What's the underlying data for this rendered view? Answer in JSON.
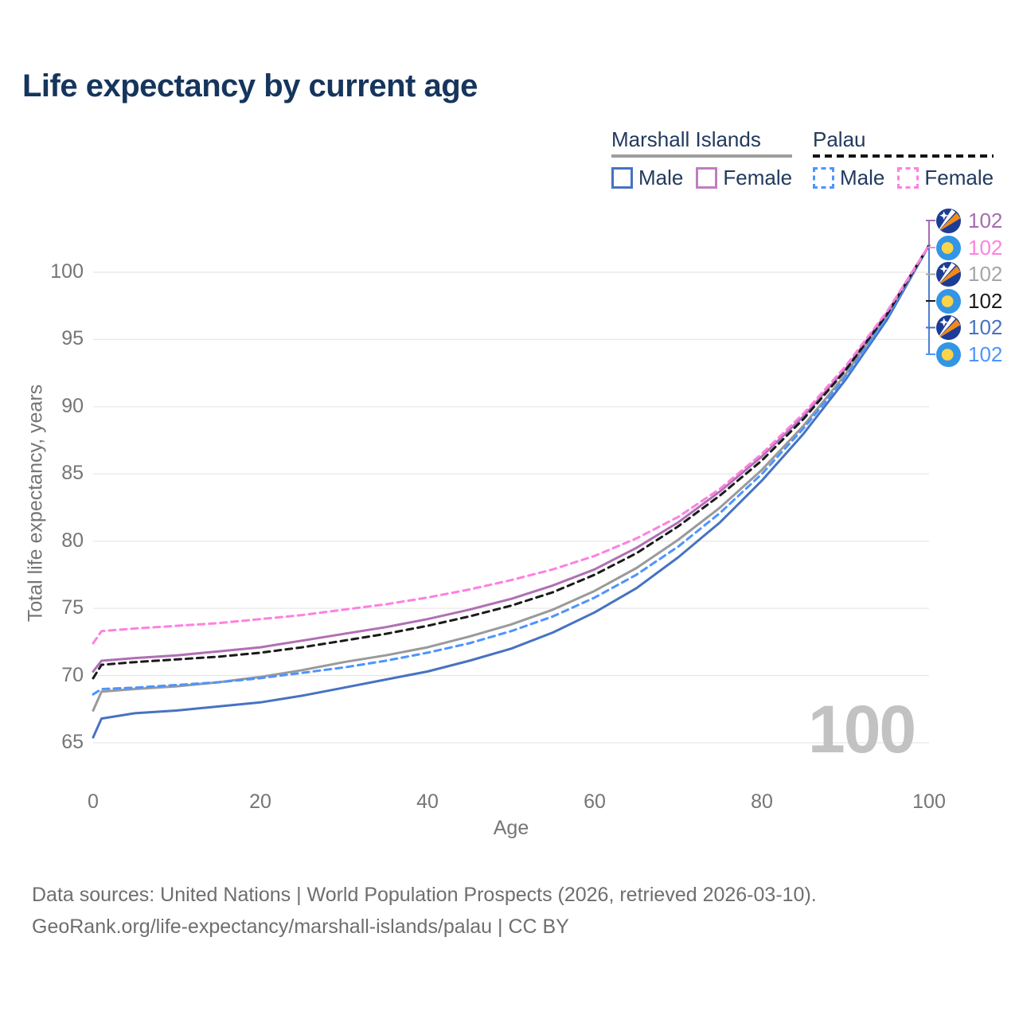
{
  "title": "Life expectancy by current age",
  "legend": {
    "groups": [
      {
        "label": "Marshall Islands",
        "underline_style": "solid",
        "underline_color": "#9e9e9e",
        "items": [
          {
            "label": "Male",
            "color": "#4673c1",
            "dashed": false
          },
          {
            "label": "Female",
            "color": "#c07ec0",
            "dashed": false
          }
        ]
      },
      {
        "label": "Palau",
        "underline_style": "dashed",
        "underline_color": "#141414",
        "items": [
          {
            "label": "Male",
            "color": "#4d94ff",
            "dashed": true
          },
          {
            "label": "Female",
            "color": "#ff80e0",
            "dashed": true
          }
        ]
      }
    ]
  },
  "chart_data": {
    "type": "line",
    "title": "Life expectancy by current age",
    "xlabel": "Age",
    "ylabel": "Total life expectancy, years",
    "xlim": [
      0,
      100
    ],
    "ylim": [
      65,
      102
    ],
    "x_ticks": [
      0,
      20,
      40,
      60,
      80,
      100
    ],
    "y_ticks": [
      65,
      70,
      75,
      80,
      85,
      90,
      95,
      100
    ],
    "grid": "horizontal",
    "gridline_color": "#e8e8e8",
    "x": [
      0,
      1,
      5,
      10,
      15,
      20,
      25,
      30,
      35,
      40,
      45,
      50,
      55,
      60,
      65,
      70,
      75,
      80,
      85,
      90,
      95,
      100
    ],
    "series": [
      {
        "key": "mi_male",
        "name": "Marshall Islands Male",
        "flag": "marshall-islands",
        "color": "#4673c1",
        "dash": false,
        "values": [
          65.4,
          66.8,
          67.2,
          67.4,
          67.7,
          68.0,
          68.5,
          69.1,
          69.7,
          70.3,
          71.1,
          72.0,
          73.2,
          74.7,
          76.5,
          78.8,
          81.4,
          84.5,
          88.0,
          92.0,
          96.5,
          102
        ]
      },
      {
        "key": "mi_total",
        "name": "Marshall Islands Total",
        "flag": "marshall-islands",
        "color": "#9a9a9a",
        "dash": false,
        "values": [
          67.4,
          68.8,
          69.0,
          69.2,
          69.5,
          69.9,
          70.4,
          71.0,
          71.5,
          72.1,
          72.9,
          73.8,
          74.9,
          76.3,
          78.0,
          80.1,
          82.5,
          85.3,
          88.6,
          92.4,
          96.8,
          102
        ]
      },
      {
        "key": "mi_female",
        "name": "Marshall Islands Female",
        "flag": "marshall-islands",
        "color": "#b06fb5",
        "dash": false,
        "values": [
          70.3,
          71.1,
          71.3,
          71.5,
          71.8,
          72.1,
          72.6,
          73.1,
          73.6,
          74.2,
          74.9,
          75.7,
          76.7,
          77.9,
          79.5,
          81.4,
          83.7,
          86.3,
          89.3,
          92.8,
          97.0,
          102
        ]
      },
      {
        "key": "palau_male",
        "name": "Palau Male",
        "flag": "palau",
        "color": "#4d94ff",
        "dash": true,
        "values": [
          68.6,
          69.0,
          69.1,
          69.3,
          69.5,
          69.8,
          70.2,
          70.6,
          71.1,
          71.7,
          72.4,
          73.3,
          74.4,
          75.8,
          77.5,
          79.6,
          82.1,
          85.0,
          88.4,
          92.2,
          96.7,
          102
        ]
      },
      {
        "key": "palau_total",
        "name": "Palau Total",
        "flag": "palau",
        "color": "#1a1a1a",
        "dash": true,
        "values": [
          69.8,
          70.8,
          71.0,
          71.2,
          71.4,
          71.7,
          72.1,
          72.6,
          73.1,
          73.7,
          74.4,
          75.2,
          76.2,
          77.5,
          79.1,
          81.1,
          83.4,
          86.0,
          89.1,
          92.7,
          96.9,
          102
        ]
      },
      {
        "key": "palau_female",
        "name": "Palau Female",
        "flag": "palau",
        "color": "#ff80e0",
        "dash": true,
        "values": [
          72.4,
          73.3,
          73.5,
          73.7,
          73.9,
          74.2,
          74.5,
          74.9,
          75.3,
          75.8,
          76.4,
          77.1,
          77.9,
          78.9,
          80.2,
          81.8,
          83.9,
          86.5,
          89.5,
          93.0,
          97.1,
          102
        ]
      }
    ],
    "end_labels": [
      {
        "flag": "marshall-islands",
        "value": "102",
        "color": "#a56cb0"
      },
      {
        "flag": "palau",
        "value": "102",
        "color": "#ff80e0"
      },
      {
        "flag": "marshall-islands",
        "value": "102",
        "color": "#a6a6a6"
      },
      {
        "flag": "palau",
        "value": "102",
        "color": "#1a1a1a"
      },
      {
        "flag": "marshall-islands",
        "value": "102",
        "color": "#4673c1"
      },
      {
        "flag": "palau",
        "value": "102",
        "color": "#4d94ff"
      }
    ],
    "watermark": "100"
  },
  "footer": {
    "line1": "Data sources: United Nations | World Population Prospects (2026, retrieved 2026-03-10).",
    "line2": "GeoRank.org/life-expectancy/marshall-islands/palau | CC BY"
  }
}
